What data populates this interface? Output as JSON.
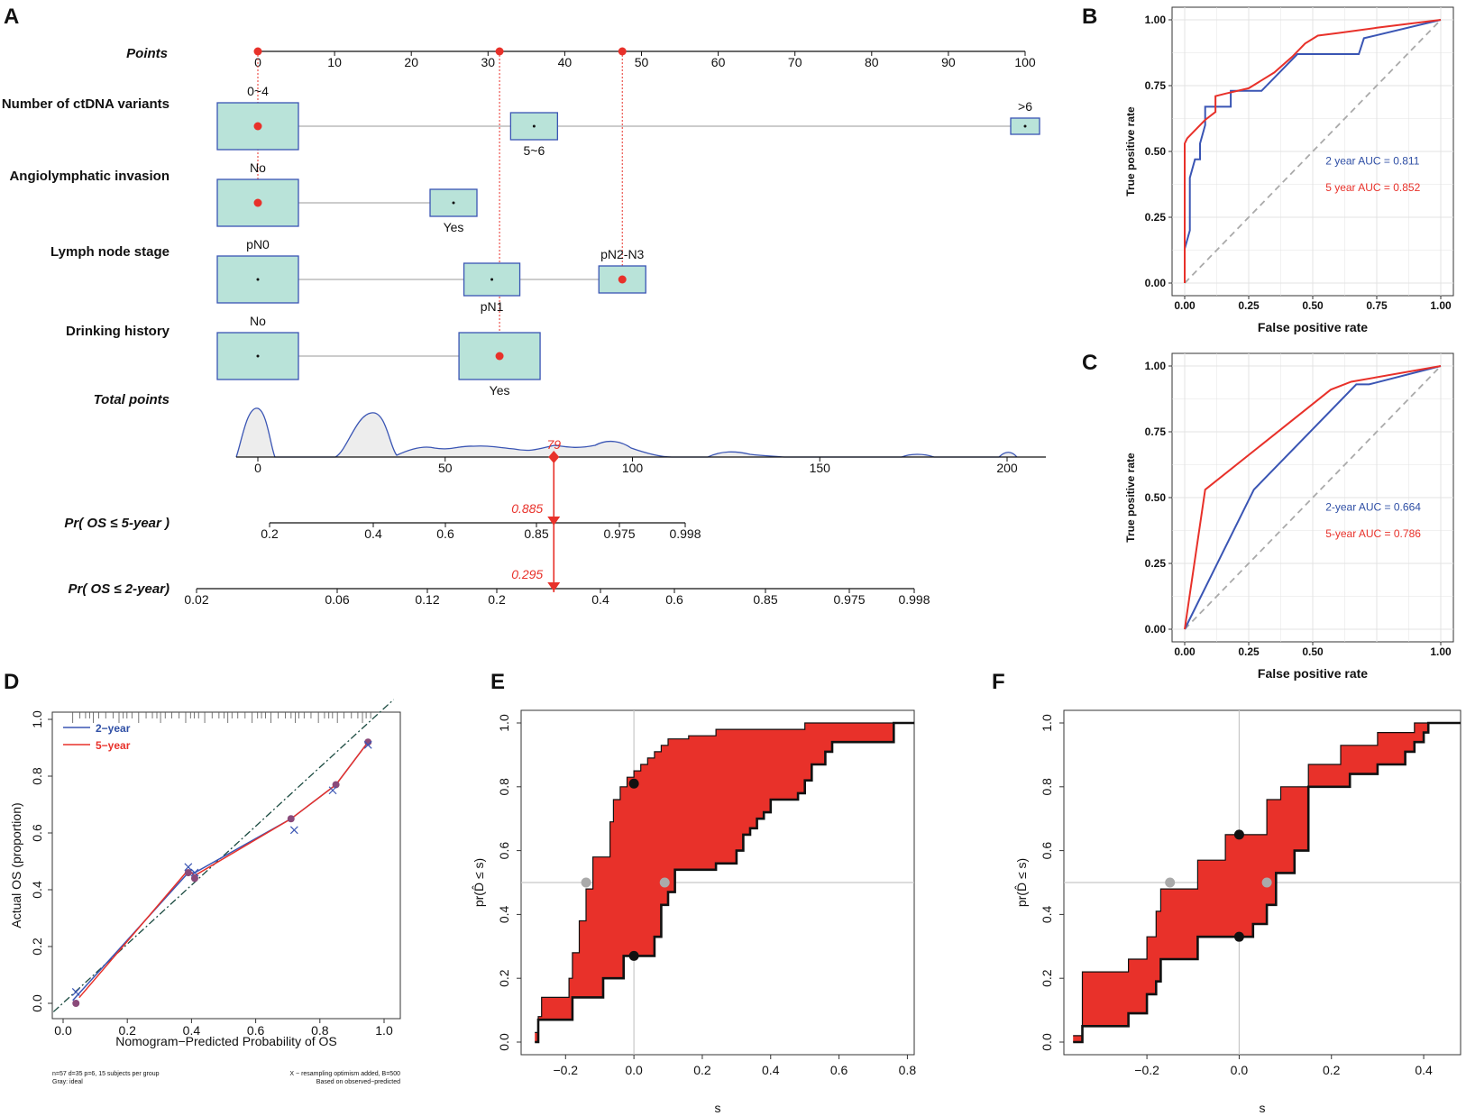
{
  "panel_labels": {
    "a": "A",
    "b": "B",
    "c": "C",
    "d": "D",
    "e": "E",
    "f": "F"
  },
  "colors": {
    "red": "#e8312a",
    "blue": "#3a55b4",
    "box_fill": "#b9e3d9",
    "box_stroke": "#3a55b4",
    "grid": "#e3e3e3",
    "ref": "#bbbbbb",
    "band": "#e8312a"
  },
  "chart_data": [
    {
      "id": "A",
      "type": "nomogram",
      "points_axis": {
        "label": "Points",
        "ticks": [
          "0",
          "10",
          "20",
          "30",
          "40",
          "50",
          "60",
          "70",
          "80",
          "90",
          "100"
        ],
        "range": [
          0,
          100
        ]
      },
      "variables": [
        {
          "label": "Number of ctDNA variants",
          "levels": [
            {
              "name": "0~4",
              "points": 0,
              "size": "large",
              "selected": true,
              "pos": "above"
            },
            {
              "name": "5~6",
              "points": 36,
              "size": "small",
              "selected": false,
              "pos": "below"
            },
            {
              "name": ">6",
              "points": 100,
              "size": "tiny",
              "selected": false,
              "pos": "above"
            }
          ]
        },
        {
          "label": "Angiolymphatic invasion",
          "levels": [
            {
              "name": "No",
              "points": 0,
              "size": "large",
              "selected": true,
              "pos": "above"
            },
            {
              "name": "Yes",
              "points": 25.5,
              "size": "small",
              "selected": false,
              "pos": "below"
            }
          ]
        },
        {
          "label": "Lymph node stage",
          "levels": [
            {
              "name": "pN0",
              "points": 0,
              "size": "large",
              "selected": false,
              "pos": "above"
            },
            {
              "name": "pN1",
              "points": 30.5,
              "size": "medium",
              "selected": false,
              "pos": "below"
            },
            {
              "name": "pN2-N3",
              "points": 47.5,
              "size": "small",
              "selected": true,
              "pos": "above"
            }
          ]
        },
        {
          "label": "Drinking history",
          "levels": [
            {
              "name": "No",
              "points": 0,
              "size": "large",
              "selected": false,
              "pos": "above"
            },
            {
              "name": "Yes",
              "points": 31.5,
              "size": "large",
              "selected": true,
              "pos": "below"
            }
          ]
        }
      ],
      "selected_points": [
        0,
        31.5,
        47.5
      ],
      "total_points": {
        "label": "Total points",
        "ticks": [
          "0",
          "50",
          "100",
          "150",
          "200"
        ],
        "range": [
          0,
          200
        ],
        "value": 79,
        "value_label": "79"
      },
      "pr5": {
        "label": "Pr( OS ≤ 5-year )",
        "ticks": [
          "0.2",
          "0.4",
          "0.6",
          "0.85",
          "0.975",
          "0.998"
        ],
        "value_label": "0.885"
      },
      "pr2": {
        "label": "Pr( OS ≤ 2-year)",
        "ticks": [
          "0.02",
          "0.06",
          "0.12",
          "0.2",
          "0.4",
          "0.6",
          "0.85",
          "0.975",
          "0.998"
        ],
        "value_label": "0.295"
      }
    },
    {
      "id": "B",
      "type": "line",
      "xlabel": "False positive rate",
      "ylabel": "True positive rate",
      "xlim": [
        0,
        1
      ],
      "ylim": [
        0,
        1
      ],
      "xticks": [
        "0.00",
        "0.25",
        "0.50",
        "0.75",
        "1.00"
      ],
      "yticks": [
        "0.00",
        "0.25",
        "0.50",
        "0.75",
        "1.00"
      ],
      "legend": [
        "2 year AUC = 0.811",
        "5 year AUC = 0.852"
      ],
      "series": [
        {
          "name": "2 year",
          "color": "blue",
          "x": [
            0,
            0,
            0.02,
            0.02,
            0.04,
            0.04,
            0.06,
            0.06,
            0.08,
            0.08,
            0.14,
            0.14,
            0.18,
            0.18,
            0.3,
            0.3,
            0.44,
            0.44,
            0.68,
            0.7,
            1
          ],
          "y": [
            0,
            0.13,
            0.2,
            0.4,
            0.47,
            0.47,
            0.47,
            0.53,
            0.6,
            0.67,
            0.67,
            0.67,
            0.67,
            0.73,
            0.73,
            0.73,
            0.87,
            0.87,
            0.87,
            0.93,
            1
          ]
        },
        {
          "name": "5 year",
          "color": "red",
          "x": [
            0,
            0,
            0.01,
            0.04,
            0.08,
            0.12,
            0.12,
            0.16,
            0.25,
            0.35,
            0.42,
            0.47,
            0.52,
            0.6,
            0.75,
            1
          ],
          "y": [
            0,
            0.53,
            0.55,
            0.58,
            0.62,
            0.65,
            0.71,
            0.72,
            0.74,
            0.8,
            0.86,
            0.91,
            0.94,
            0.95,
            0.97,
            1
          ]
        }
      ]
    },
    {
      "id": "C",
      "type": "line",
      "xlabel": "False positive rate",
      "ylabel": "True positive rate",
      "xlim": [
        0,
        1
      ],
      "ylim": [
        0,
        1
      ],
      "xticks": [
        "0.00",
        "0.25",
        "0.50",
        "1.00"
      ],
      "xtick_values": [
        0,
        0.25,
        0.5,
        1
      ],
      "yticks": [
        "0.00",
        "0.25",
        "0.50",
        "0.75",
        "1.00"
      ],
      "legend": [
        "2-year AUC = 0.664",
        "5-year AUC = 0.786"
      ],
      "series": [
        {
          "name": "2-year",
          "color": "blue",
          "x": [
            0,
            0.27,
            0.67,
            0.72,
            1
          ],
          "y": [
            0,
            0.53,
            0.93,
            0.93,
            1
          ]
        },
        {
          "name": "5-year",
          "color": "red",
          "x": [
            0,
            0.08,
            0.57,
            0.65,
            1
          ],
          "y": [
            0,
            0.53,
            0.91,
            0.94,
            1
          ]
        }
      ]
    },
    {
      "id": "D",
      "type": "line",
      "xlabel": "Nomogram−Predicted Probability of OS",
      "ylabel": "Actual OS (proportion)",
      "xlim": [
        0,
        1
      ],
      "ylim": [
        0,
        1
      ],
      "xticks": [
        "0.0",
        "0.2",
        "0.4",
        "0.6",
        "0.8",
        "1.0"
      ],
      "yticks": [
        "0.0",
        "0.2",
        "0.4",
        "0.6",
        "0.8",
        "1.0"
      ],
      "legend": [
        "2−year",
        "5−year"
      ],
      "footnote_left": [
        "n=57 d=35 p=6, 15 subjects per group",
        "Gray: ideal"
      ],
      "footnote_right": [
        "X − resampling optimism added, B=500",
        "Based on observed−predicted"
      ],
      "series": [
        {
          "name": "2−year",
          "color": "blue",
          "x": [
            0.03,
            0.39,
            0.41,
            0.71,
            0.85,
            0.95
          ],
          "y": [
            0.01,
            0.46,
            0.46,
            0.65,
            0.77,
            0.92
          ]
        },
        {
          "name": "5−year",
          "color": "red",
          "x": [
            0.05,
            0.39,
            0.41,
            0.71,
            0.85,
            0.95
          ],
          "y": [
            0.02,
            0.47,
            0.45,
            0.65,
            0.77,
            0.92
          ]
        }
      ],
      "points": {
        "x": [
          0.04,
          0.39,
          0.41,
          0.71,
          0.85,
          0.95
        ],
        "y": [
          0.0,
          0.46,
          0.44,
          0.65,
          0.77,
          0.92
        ]
      },
      "x_marks": {
        "x": [
          0.04,
          0.39,
          0.41,
          0.72,
          0.84,
          0.95
        ],
        "y": [
          0.04,
          0.48,
          0.46,
          0.61,
          0.75,
          0.91
        ]
      }
    },
    {
      "id": "E",
      "type": "area",
      "xlabel": "s",
      "ylabel": "pr(D̂ ≤ s)",
      "xlim": [
        -0.33,
        0.82
      ],
      "ylim": [
        0,
        1
      ],
      "xticks": [
        "−0.2",
        "0.0",
        "0.2",
        "0.4",
        "0.6",
        "0.8"
      ],
      "xtick_values": [
        -0.2,
        0,
        0.2,
        0.4,
        0.6,
        0.8
      ],
      "yticks": [
        "0.0",
        "0.2",
        "0.4",
        "0.6",
        "0.8",
        "1.0"
      ],
      "upper": {
        "x": [
          -0.29,
          -0.28,
          -0.28,
          -0.27,
          -0.27,
          -0.19,
          -0.19,
          -0.18,
          -0.18,
          -0.16,
          -0.16,
          -0.14,
          -0.14,
          -0.12,
          -0.12,
          -0.07,
          -0.07,
          -0.06,
          -0.06,
          -0.04,
          -0.04,
          -0.02,
          -0.02,
          0,
          0,
          0.02,
          0.02,
          0.04,
          0.04,
          0.06,
          0.06,
          0.08,
          0.08,
          0.1,
          0.1,
          0.16,
          0.16,
          0.24,
          0.24,
          0.5,
          0.5,
          0.78,
          0.78,
          0.82
        ],
        "y": [
          0.03,
          0.03,
          0.08,
          0.08,
          0.14,
          0.14,
          0.2,
          0.2,
          0.28,
          0.28,
          0.38,
          0.38,
          0.48,
          0.48,
          0.58,
          0.58,
          0.69,
          0.69,
          0.76,
          0.76,
          0.8,
          0.8,
          0.83,
          0.83,
          0.85,
          0.85,
          0.87,
          0.87,
          0.89,
          0.89,
          0.91,
          0.91,
          0.93,
          0.93,
          0.95,
          0.95,
          0.96,
          0.96,
          0.98,
          0.98,
          1,
          1,
          1,
          1
        ]
      },
      "lower": {
        "x": [
          -0.29,
          -0.28,
          -0.28,
          -0.18,
          -0.18,
          -0.09,
          -0.09,
          -0.03,
          -0.03,
          0.06,
          0.06,
          0.08,
          0.08,
          0.1,
          0.1,
          0.12,
          0.12,
          0.24,
          0.24,
          0.3,
          0.3,
          0.32,
          0.32,
          0.34,
          0.34,
          0.36,
          0.36,
          0.38,
          0.38,
          0.4,
          0.4,
          0.48,
          0.48,
          0.5,
          0.5,
          0.52,
          0.52,
          0.56,
          0.56,
          0.58,
          0.58,
          0.76,
          0.76,
          0.82
        ],
        "y": [
          0,
          0,
          0.07,
          0.07,
          0.14,
          0.14,
          0.2,
          0.2,
          0.27,
          0.27,
          0.33,
          0.33,
          0.43,
          0.43,
          0.47,
          0.47,
          0.54,
          0.54,
          0.56,
          0.56,
          0.6,
          0.6,
          0.65,
          0.65,
          0.67,
          0.67,
          0.7,
          0.7,
          0.72,
          0.72,
          0.76,
          0.76,
          0.78,
          0.78,
          0.82,
          0.82,
          0.87,
          0.87,
          0.91,
          0.91,
          0.94,
          0.94,
          1,
          1
        ]
      },
      "black_points": {
        "x": [
          0,
          0
        ],
        "y": [
          0.81,
          0.27
        ]
      },
      "gray_points": {
        "x": [
          -0.14,
          0.09
        ],
        "y": [
          0.5,
          0.5
        ]
      }
    },
    {
      "id": "F",
      "type": "area",
      "xlabel": "s",
      "ylabel": "pr(D̂ ≤ s)",
      "xlim": [
        -0.38,
        0.48
      ],
      "ylim": [
        0,
        1
      ],
      "xticks": [
        "−0.2",
        "0.0",
        "0.2",
        "0.4"
      ],
      "xtick_values": [
        -0.2,
        0,
        0.2,
        0.4
      ],
      "yticks": [
        "0.0",
        "0.2",
        "0.4",
        "0.6",
        "0.8",
        "1.0"
      ],
      "upper": {
        "x": [
          -0.36,
          -0.34,
          -0.34,
          -0.24,
          -0.24,
          -0.2,
          -0.2,
          -0.18,
          -0.18,
          -0.17,
          -0.17,
          -0.09,
          -0.09,
          -0.03,
          -0.03,
          0.06,
          0.06,
          0.09,
          0.09,
          0.15,
          0.15,
          0.22,
          0.22,
          0.3,
          0.3,
          0.38,
          0.38,
          0.45,
          0.45,
          0.48
        ],
        "y": [
          0.02,
          0.02,
          0.22,
          0.22,
          0.26,
          0.26,
          0.33,
          0.33,
          0.41,
          0.41,
          0.48,
          0.48,
          0.57,
          0.57,
          0.65,
          0.65,
          0.76,
          0.76,
          0.8,
          0.8,
          0.87,
          0.87,
          0.93,
          0.93,
          0.97,
          0.97,
          1,
          1,
          1,
          1
        ]
      },
      "lower": {
        "x": [
          -0.36,
          -0.34,
          -0.34,
          -0.24,
          -0.24,
          -0.2,
          -0.2,
          -0.18,
          -0.18,
          -0.17,
          -0.17,
          -0.09,
          -0.09,
          0.03,
          0.03,
          0.06,
          0.06,
          0.08,
          0.08,
          0.12,
          0.12,
          0.15,
          0.15,
          0.24,
          0.24,
          0.3,
          0.3,
          0.36,
          0.36,
          0.38,
          0.38,
          0.4,
          0.4,
          0.41,
          0.41,
          0.48
        ],
        "y": [
          0,
          0,
          0.05,
          0.05,
          0.09,
          0.09,
          0.15,
          0.15,
          0.19,
          0.19,
          0.26,
          0.26,
          0.33,
          0.33,
          0.37,
          0.37,
          0.43,
          0.43,
          0.53,
          0.53,
          0.6,
          0.6,
          0.8,
          0.8,
          0.84,
          0.84,
          0.87,
          0.87,
          0.91,
          0.91,
          0.94,
          0.94,
          0.97,
          0.97,
          1,
          1
        ]
      },
      "black_points": {
        "x": [
          0,
          0
        ],
        "y": [
          0.65,
          0.33
        ]
      },
      "gray_points": {
        "x": [
          -0.15,
          0.06
        ],
        "y": [
          0.5,
          0.5
        ]
      }
    }
  ]
}
